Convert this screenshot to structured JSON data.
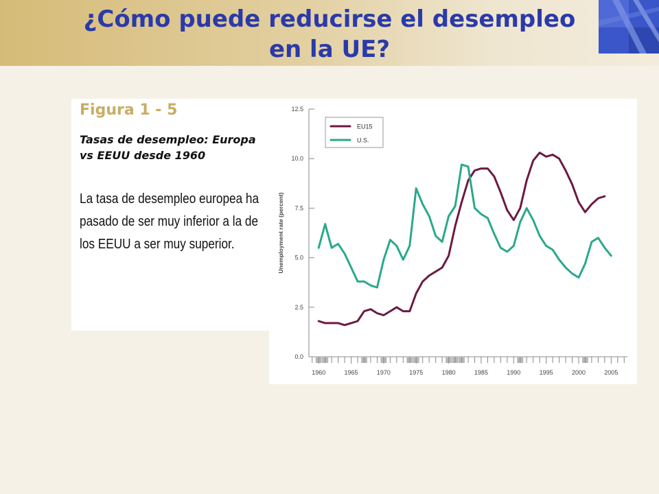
{
  "slide": {
    "title_line1": "¿Cómo puede reducirse el desempleo",
    "title_line2": "en la UE?"
  },
  "figure": {
    "label": "Figura 1 - 5",
    "subtitle": "Tasas de desempleo: Europa vs EEUU desde 1960",
    "description": "La tasa de desempleo europea ha pasado de ser muy inferior a la de los EEUU a ser muy superior."
  },
  "chart_data": {
    "type": "line",
    "ylabel": "Unemployment rate (percent)",
    "xlabel": "",
    "xlim": [
      1958.5,
      2007.5
    ],
    "ylim": [
      0,
      12.5
    ],
    "x_ticks": [
      1960,
      1965,
      1970,
      1975,
      1980,
      1985,
      1990,
      1995,
      2000,
      2005
    ],
    "y_ticks": [
      "0.0",
      "2.5",
      "5.0",
      "7.5",
      "10.0",
      "12.5"
    ],
    "legend_position": "top-left",
    "recession_shading": [
      1960,
      1961,
      1967,
      1970,
      1974,
      1975,
      1980,
      1981,
      1982,
      1991,
      2001
    ],
    "x": [
      1960,
      1961,
      1962,
      1963,
      1964,
      1965,
      1966,
      1967,
      1968,
      1969,
      1970,
      1971,
      1972,
      1973,
      1974,
      1975,
      1976,
      1977,
      1978,
      1979,
      1980,
      1981,
      1982,
      1983,
      1984,
      1985,
      1986,
      1987,
      1988,
      1989,
      1990,
      1991,
      1992,
      1993,
      1994,
      1995,
      1996,
      1997,
      1998,
      1999,
      2000,
      2001,
      2002,
      2003,
      2004,
      2005
    ],
    "series": [
      {
        "name": "EU15",
        "color": "#6b1a42",
        "values": [
          1.8,
          1.7,
          1.7,
          1.7,
          1.6,
          1.7,
          1.8,
          2.3,
          2.4,
          2.2,
          2.1,
          2.3,
          2.5,
          2.3,
          2.3,
          3.2,
          3.8,
          4.1,
          4.3,
          4.5,
          5.1,
          6.6,
          7.8,
          8.9,
          9.4,
          9.5,
          9.5,
          9.1,
          8.3,
          7.4,
          6.9,
          7.5,
          8.9,
          9.9,
          10.3,
          10.1,
          10.2,
          10.0,
          9.4,
          8.7,
          7.8,
          7.3,
          7.7,
          8.0,
          8.1,
          null
        ]
      },
      {
        "name": "U.S.",
        "color": "#2aa88c",
        "values": [
          5.5,
          6.7,
          5.5,
          5.7,
          5.2,
          4.5,
          3.8,
          3.8,
          3.6,
          3.5,
          4.9,
          5.9,
          5.6,
          4.9,
          5.6,
          8.5,
          7.7,
          7.1,
          6.1,
          5.8,
          7.1,
          7.6,
          9.7,
          9.6,
          7.5,
          7.2,
          7.0,
          6.2,
          5.5,
          5.3,
          5.6,
          6.8,
          7.5,
          6.9,
          6.1,
          5.6,
          5.4,
          4.9,
          4.5,
          4.2,
          4.0,
          4.7,
          5.8,
          6.0,
          5.5,
          5.1
        ]
      }
    ]
  }
}
